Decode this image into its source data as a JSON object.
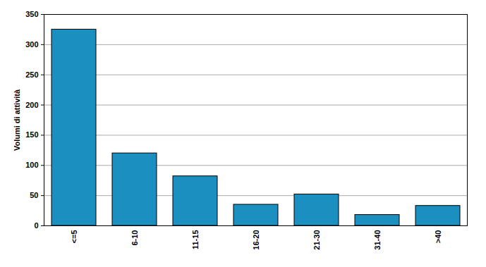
{
  "chart_data": {
    "type": "bar",
    "categories": [
      "<=5",
      "6-10",
      "11-15",
      "16-20",
      "21-30",
      "31-40",
      ">40"
    ],
    "values": [
      325,
      120,
      82,
      35,
      52,
      18,
      33
    ],
    "color": "#1a8fc0",
    "ylabel": "Volumi di attività",
    "ylim": [
      0,
      350
    ],
    "yticks": [
      0,
      50,
      100,
      150,
      200,
      250,
      300,
      350
    ],
    "grid": true
  }
}
